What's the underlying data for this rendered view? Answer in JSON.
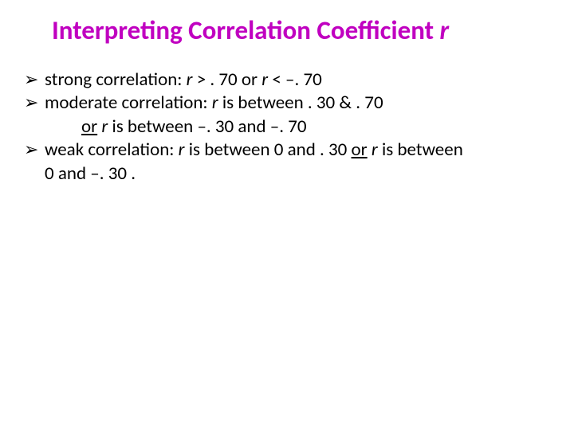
{
  "title": {
    "prefix": "Interpreting Correlation Coefficient ",
    "var": "r",
    "color": "#c000c0",
    "fontsize": 33
  },
  "body": {
    "fontsize": 23,
    "color": "#000000",
    "arrow_glyph": "➢"
  },
  "lines": {
    "l1": {
      "a": "strong correlation:  ",
      "r1": "r",
      "b": " > . 70 or ",
      "r2": "r",
      "c": " < –. 70"
    },
    "l2": {
      "a": "moderate correlation:  ",
      "r1": "r",
      "b": " is between . 30 & . 70"
    },
    "l2b": {
      "or": "or",
      "sp": "  ",
      "r1": "r",
      "a": " is between –. 30 and –. 70"
    },
    "l3": {
      "a": "weak correlation:  ",
      "r1": "r",
      "b": " is between 0 and . 30 ",
      "or": "or",
      "sp": " ",
      "r2": "r",
      "c": " is between"
    },
    "l3b": {
      "a": "0 and –. 30 ."
    }
  }
}
